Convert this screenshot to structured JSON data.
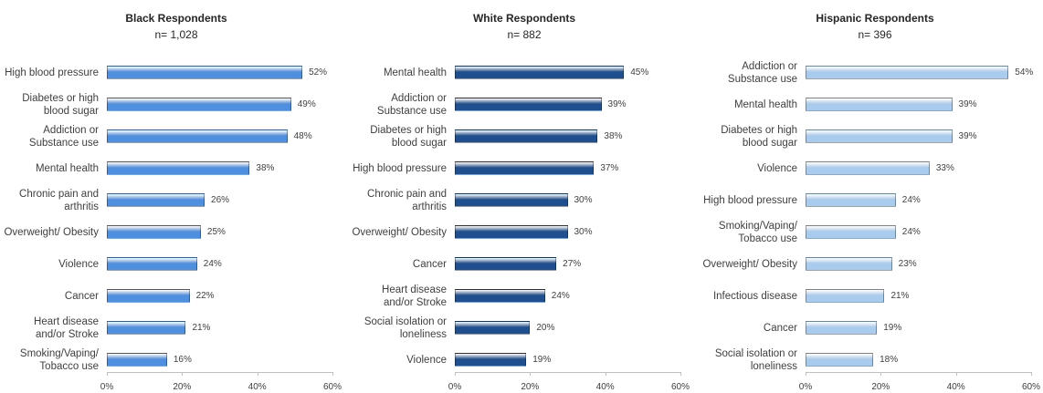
{
  "chart_data": [
    {
      "type": "bar",
      "title": "Black Respondents",
      "subtitle": "n= 1,028",
      "categories": [
        "High blood pressure",
        "Diabetes or high blood sugar",
        "Addiction or Substance use",
        "Mental health",
        "Chronic pain and arthritis",
        "Overweight/ Obesity",
        "Violence",
        "Cancer",
        "Heart disease and/or Stroke",
        "Smoking/Vaping/ Tobacco use"
      ],
      "values": [
        52,
        49,
        48,
        38,
        26,
        25,
        24,
        22,
        21,
        16
      ],
      "value_labels": [
        "52%",
        "49%",
        "48%",
        "38%",
        "26%",
        "25%",
        "24%",
        "22%",
        "21%",
        "16%"
      ],
      "color": "#4f8fe0",
      "xlim": [
        0,
        60
      ],
      "xticks": [
        {
          "value": 0,
          "label": "0%"
        },
        {
          "value": 20,
          "label": "20%"
        },
        {
          "value": 40,
          "label": "40%"
        },
        {
          "value": 60,
          "label": "60%"
        }
      ]
    },
    {
      "type": "bar",
      "title": "White Respondents",
      "subtitle": "n= 882",
      "categories": [
        "Mental health",
        "Addiction or Substance use",
        "Diabetes or high blood sugar",
        "High blood pressure",
        "Chronic pain and arthritis",
        "Overweight/ Obesity",
        "Cancer",
        "Heart disease and/or Stroke",
        "Social isolation or loneliness",
        "Violence"
      ],
      "values": [
        45,
        39,
        38,
        37,
        30,
        30,
        27,
        24,
        20,
        19
      ],
      "value_labels": [
        "45%",
        "39%",
        "38%",
        "37%",
        "30%",
        "30%",
        "27%",
        "24%",
        "20%",
        "19%"
      ],
      "color": "#1f4f8f",
      "xlim": [
        0,
        60
      ],
      "xticks": [
        {
          "value": 0,
          "label": "0%"
        },
        {
          "value": 20,
          "label": "20%"
        },
        {
          "value": 40,
          "label": "40%"
        },
        {
          "value": 60,
          "label": "60%"
        }
      ]
    },
    {
      "type": "bar",
      "title": "Hispanic Respondents",
      "subtitle": "n= 396",
      "categories": [
        "Addiction or Substance use",
        "Mental health",
        "Diabetes or high blood sugar",
        "Violence",
        "High blood pressure",
        "Smoking/Vaping/ Tobacco use",
        "Overweight/ Obesity",
        "Infectious disease",
        "Cancer",
        "Social isolation or loneliness"
      ],
      "values": [
        54,
        39,
        39,
        33,
        24,
        24,
        23,
        21,
        19,
        18
      ],
      "value_labels": [
        "54%",
        "39%",
        "39%",
        "33%",
        "24%",
        "24%",
        "23%",
        "21%",
        "19%",
        "18%"
      ],
      "color": "#a9cbee",
      "xlim": [
        0,
        60
      ],
      "xticks": [
        {
          "value": 0,
          "label": "0%"
        },
        {
          "value": 20,
          "label": "20%"
        },
        {
          "value": 40,
          "label": "40%"
        },
        {
          "value": 60,
          "label": "60%"
        }
      ]
    }
  ]
}
